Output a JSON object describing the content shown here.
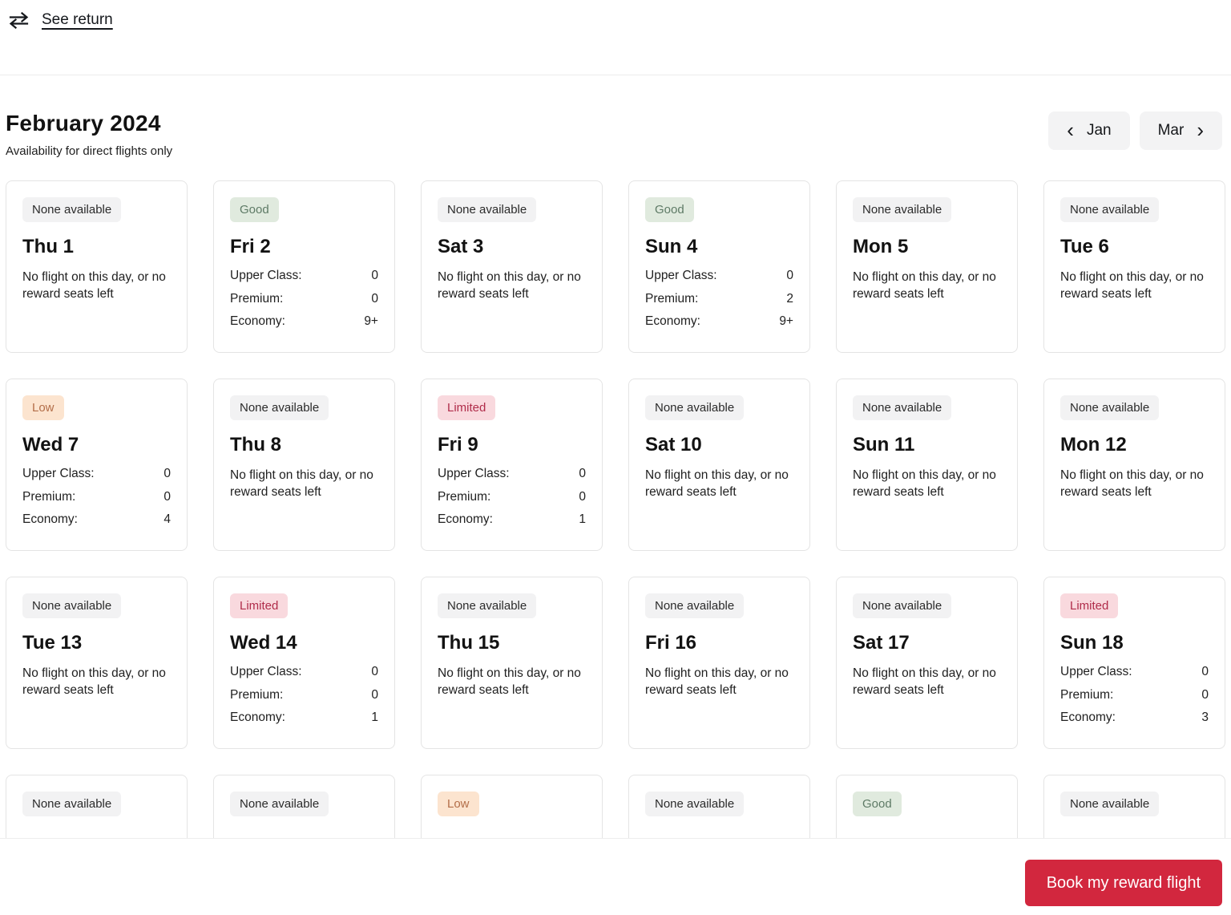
{
  "header": {
    "see_return_label": "See return"
  },
  "month": {
    "title": "February 2024",
    "subtitle": "Availability for direct flights only",
    "prev_label": "Jan",
    "next_label": "Mar"
  },
  "icons": {
    "chevron_left": "‹",
    "chevron_right": "›"
  },
  "labels": {
    "upper_class": "Upper Class:",
    "premium": "Premium:",
    "economy": "Economy:",
    "no_flight": "No flight on this day, or no reward seats left"
  },
  "badges": {
    "none": {
      "label": "None available",
      "bg": "#f2f2f3",
      "fg": "#2b2b2b"
    },
    "good": {
      "label": "Good",
      "bg": "#e0eade",
      "fg": "#5e7a66"
    },
    "low": {
      "label": "Low",
      "bg": "#fce4cf",
      "fg": "#b36e49"
    },
    "limited": {
      "label": "Limited",
      "bg": "#f9d9de",
      "fg": "#b02c4a"
    }
  },
  "calendar": {
    "days": [
      {
        "day": "Thu 1",
        "badge": "none",
        "seats": null
      },
      {
        "day": "Fri 2",
        "badge": "good",
        "seats": {
          "upper": "0",
          "premium": "0",
          "economy": "9+"
        }
      },
      {
        "day": "Sat 3",
        "badge": "none",
        "seats": null
      },
      {
        "day": "Sun 4",
        "badge": "good",
        "seats": {
          "upper": "0",
          "premium": "2",
          "economy": "9+"
        }
      },
      {
        "day": "Mon 5",
        "badge": "none",
        "seats": null
      },
      {
        "day": "Tue 6",
        "badge": "none",
        "seats": null
      },
      {
        "day": "Wed 7",
        "badge": "low",
        "seats": {
          "upper": "0",
          "premium": "0",
          "economy": "4"
        }
      },
      {
        "day": "Thu 8",
        "badge": "none",
        "seats": null
      },
      {
        "day": "Fri 9",
        "badge": "limited",
        "seats": {
          "upper": "0",
          "premium": "0",
          "economy": "1"
        }
      },
      {
        "day": "Sat 10",
        "badge": "none",
        "seats": null
      },
      {
        "day": "Sun 11",
        "badge": "none",
        "seats": null
      },
      {
        "day": "Mon 12",
        "badge": "none",
        "seats": null
      },
      {
        "day": "Tue 13",
        "badge": "none",
        "seats": null
      },
      {
        "day": "Wed 14",
        "badge": "limited",
        "seats": {
          "upper": "0",
          "premium": "0",
          "economy": "1"
        }
      },
      {
        "day": "Thu 15",
        "badge": "none",
        "seats": null
      },
      {
        "day": "Fri 16",
        "badge": "none",
        "seats": null
      },
      {
        "day": "Sat 17",
        "badge": "none",
        "seats": null
      },
      {
        "day": "Sun 18",
        "badge": "limited",
        "seats": {
          "upper": "0",
          "premium": "0",
          "economy": "3"
        }
      },
      {
        "day": "",
        "badge": "none",
        "partial": true
      },
      {
        "day": "",
        "badge": "none",
        "partial": true
      },
      {
        "day": "",
        "badge": "low",
        "partial": true
      },
      {
        "day": "",
        "badge": "none",
        "partial": true
      },
      {
        "day": "",
        "badge": "good",
        "partial": true
      },
      {
        "day": "",
        "badge": "none",
        "partial": true
      }
    ]
  },
  "footer": {
    "cta_label": "Book my reward flight",
    "cta_bg": "#d2273e"
  }
}
